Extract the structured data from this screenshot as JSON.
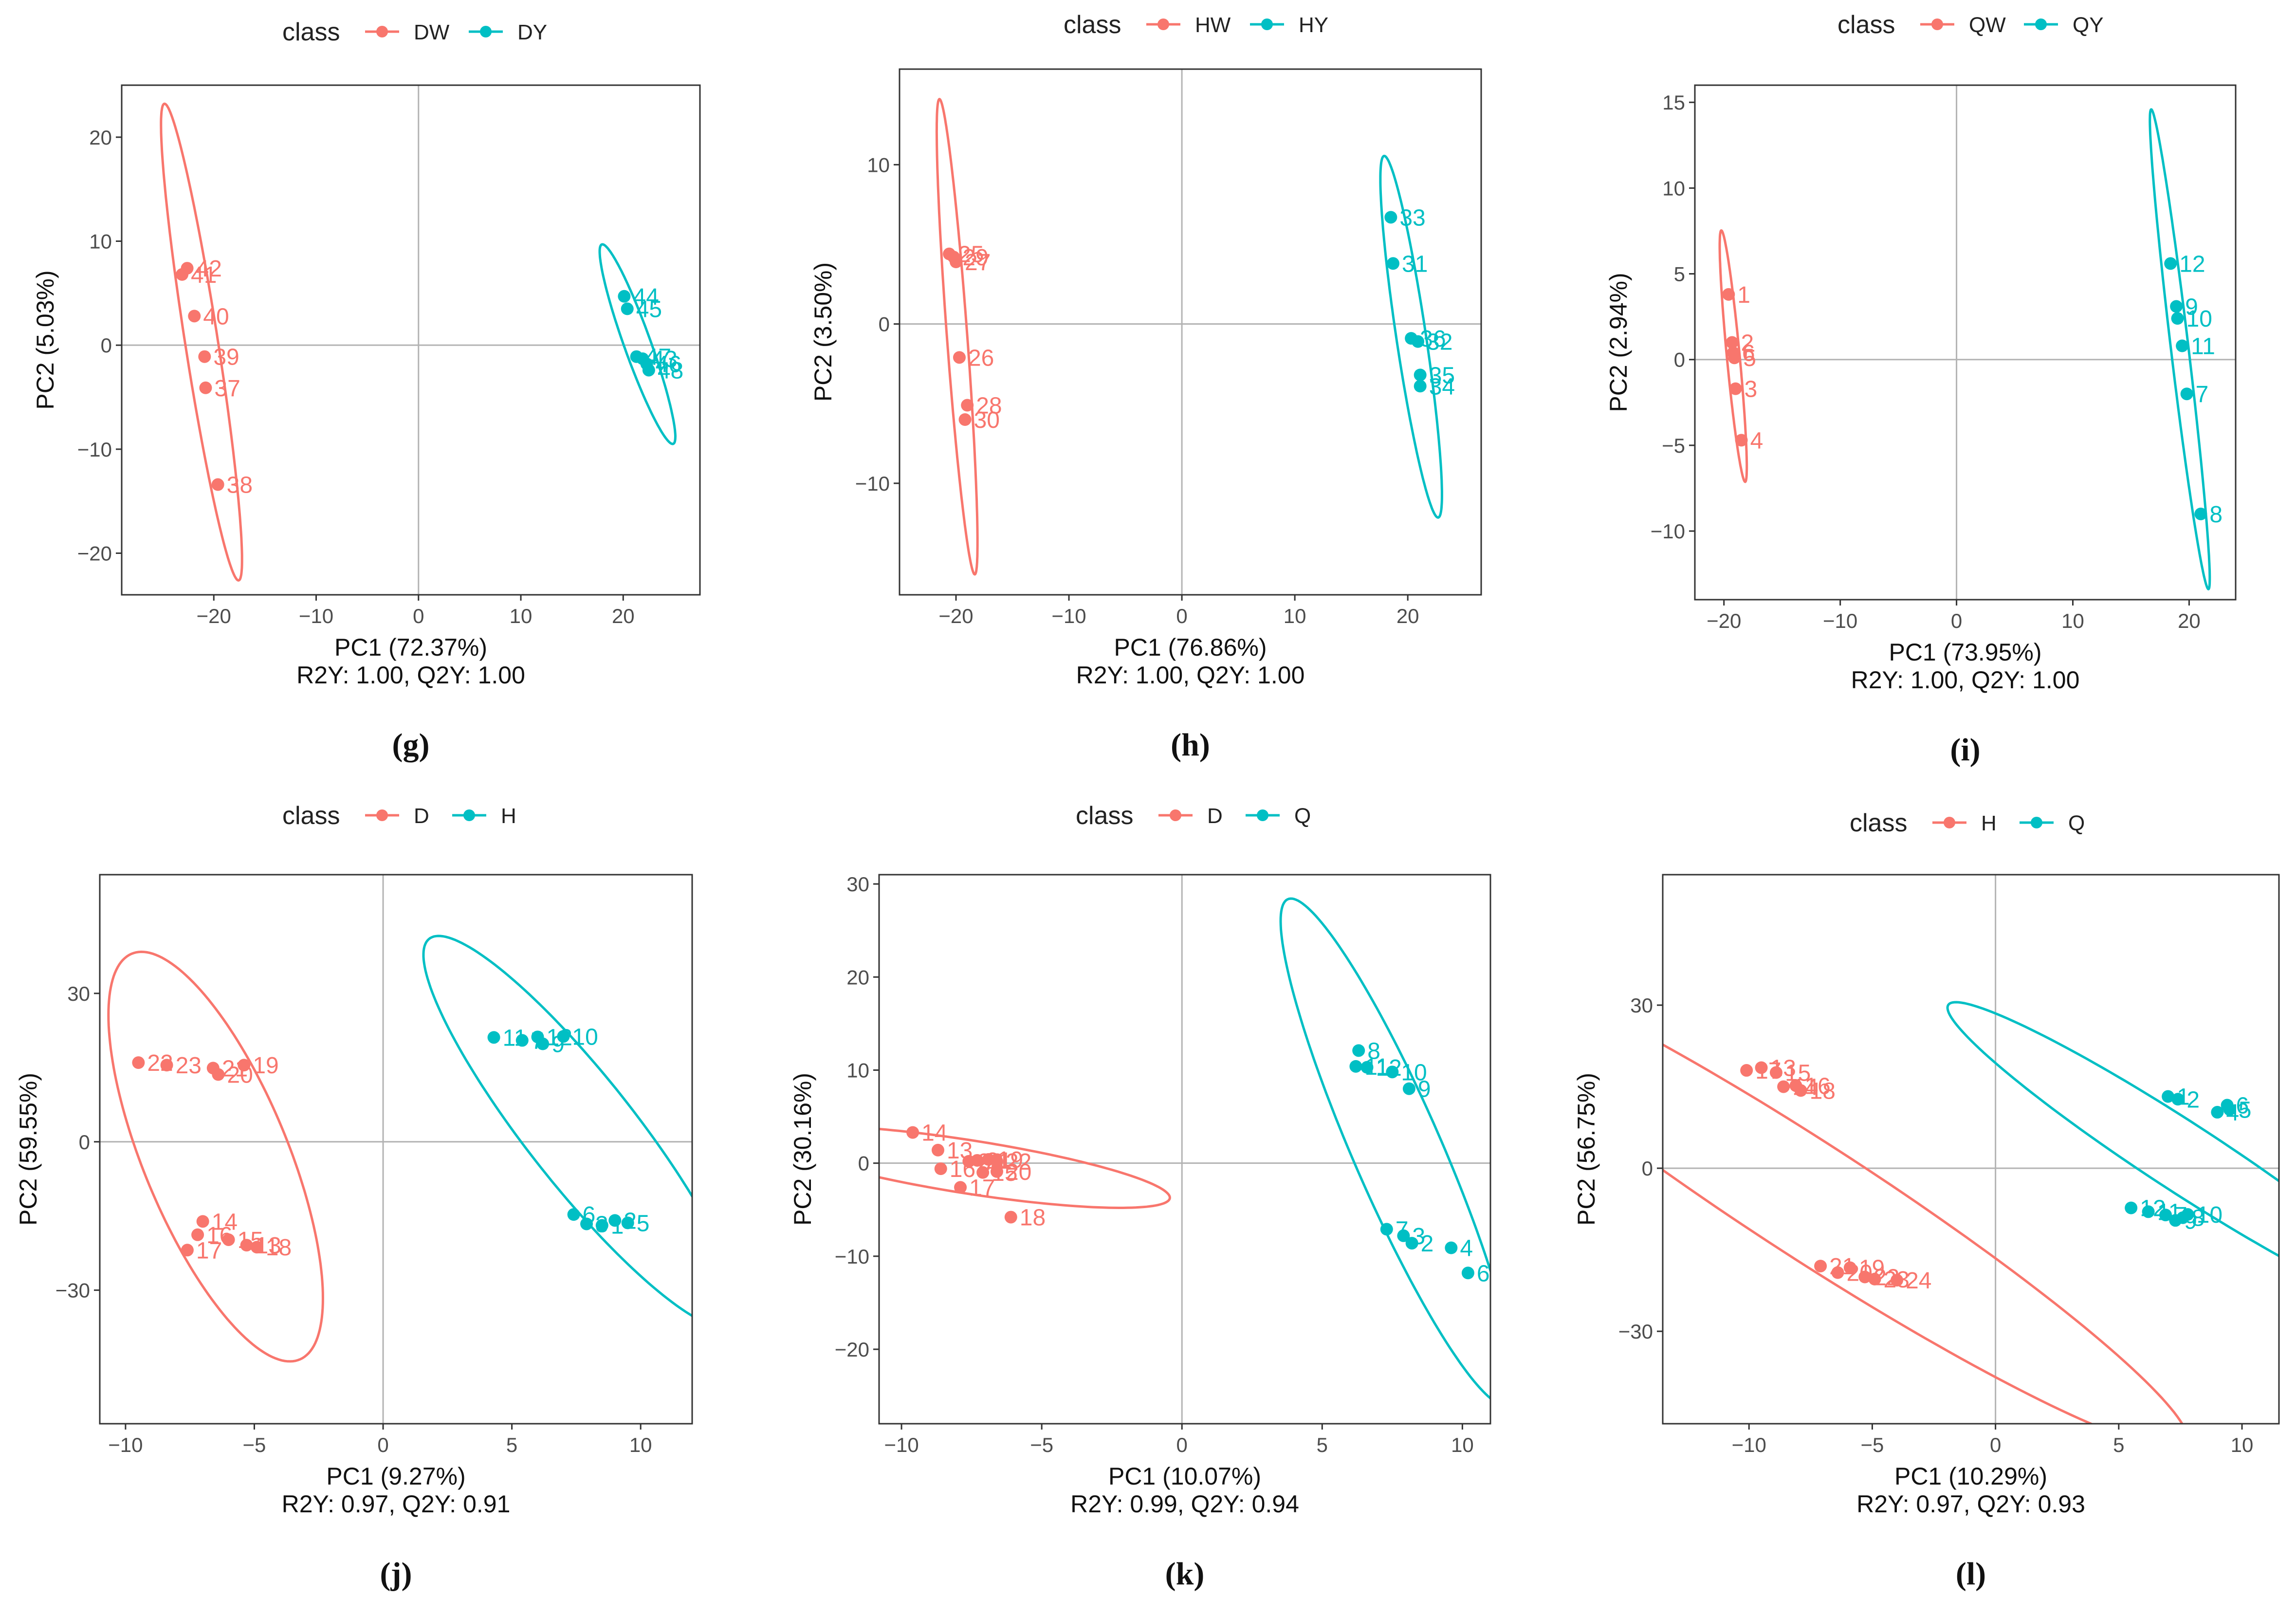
{
  "colors": {
    "group_a": "#F8766D",
    "group_b": "#00BFC4"
  },
  "legend_title": "class",
  "chart_data": [
    {
      "type": "scatter",
      "panel_label": "g",
      "xlabel": "PC1 (72.37%)",
      "ylabel": "PC2 (5.03%)",
      "subtitle": "R2Y: 1.00, Q2Y: 1.00",
      "xlim": [
        -29,
        27.5
      ],
      "ylim": [
        -24,
        25
      ],
      "xticks": [
        -20,
        -10,
        0,
        10,
        20
      ],
      "yticks": [
        -20,
        -10,
        0,
        10,
        20
      ],
      "legend": [
        "DW",
        "DY"
      ],
      "series": [
        {
          "name": "DW",
          "points": [
            {
              "x": -22.6,
              "y": 7.4,
              "label": "42"
            },
            {
              "x": -23.1,
              "y": 6.8,
              "label": "41"
            },
            {
              "x": -21.9,
              "y": 2.8,
              "label": "40"
            },
            {
              "x": -20.9,
              "y": -1.1,
              "label": "39"
            },
            {
              "x": -20.8,
              "y": -4.1,
              "label": "37"
            },
            {
              "x": -19.6,
              "y": -13.4,
              "label": "38"
            }
          ],
          "ellipse": {
            "cx": -21.2,
            "cy": 0.3,
            "rx": 23.2,
            "ry": 1.6,
            "angle": -81
          }
        },
        {
          "name": "DY",
          "points": [
            {
              "x": 20.1,
              "y": 4.7,
              "label": "44"
            },
            {
              "x": 20.4,
              "y": 3.5,
              "label": "45"
            },
            {
              "x": 21.3,
              "y": -1.1,
              "label": "47"
            },
            {
              "x": 21.9,
              "y": -1.3,
              "label": "43"
            },
            {
              "x": 22.3,
              "y": -1.8,
              "label": "46"
            },
            {
              "x": 22.5,
              "y": -2.4,
              "label": "48"
            }
          ],
          "ellipse": {
            "cx": 21.4,
            "cy": 0.1,
            "rx": 10.2,
            "ry": 1.3,
            "angle": -70
          }
        }
      ]
    },
    {
      "type": "scatter",
      "panel_label": "h",
      "xlabel": "PC1 (76.86%)",
      "ylabel": "PC2 (3.50%)",
      "subtitle": "R2Y: 1.00, Q2Y: 1.00",
      "xlim": [
        -25,
        26.5
      ],
      "ylim": [
        -17,
        16
      ],
      "xticks": [
        -20,
        -10,
        0,
        10,
        20
      ],
      "yticks": [
        -10,
        0,
        10
      ],
      "legend": [
        "HW",
        "HY"
      ],
      "series": [
        {
          "name": "HW",
          "points": [
            {
              "x": -20.6,
              "y": 4.4,
              "label": "25"
            },
            {
              "x": -20.2,
              "y": 4.2,
              "label": "29"
            },
            {
              "x": -20.0,
              "y": 3.9,
              "label": "27"
            },
            {
              "x": -19.7,
              "y": -2.1,
              "label": "26"
            },
            {
              "x": -19.0,
              "y": -5.1,
              "label": "28"
            },
            {
              "x": -19.2,
              "y": -6.0,
              "label": "30"
            }
          ],
          "ellipse": {
            "cx": -19.9,
            "cy": -0.8,
            "rx": 15.0,
            "ry": 0.9,
            "angle": -84
          }
        },
        {
          "name": "HY",
          "points": [
            {
              "x": 18.5,
              "y": 6.7,
              "label": "33"
            },
            {
              "x": 18.7,
              "y": 3.8,
              "label": "31"
            },
            {
              "x": 20.3,
              "y": -0.9,
              "label": "36"
            },
            {
              "x": 20.9,
              "y": -1.1,
              "label": "32"
            },
            {
              "x": 21.1,
              "y": -3.2,
              "label": "35"
            },
            {
              "x": 21.1,
              "y": -3.9,
              "label": "34"
            }
          ],
          "ellipse": {
            "cx": 20.3,
            "cy": -0.8,
            "rx": 11.6,
            "ry": 1.3,
            "angle": -78
          }
        }
      ]
    },
    {
      "type": "scatter",
      "panel_label": "i",
      "xlabel": "PC1 (73.95%)",
      "ylabel": "PC2 (2.94%)",
      "subtitle": "R2Y: 1.00, Q2Y: 1.00",
      "xlim": [
        -22.5,
        24
      ],
      "ylim": [
        -14,
        16
      ],
      "xticks": [
        -20,
        -10,
        0,
        10,
        20
      ],
      "yticks": [
        -10,
        -5,
        0,
        5,
        10,
        15
      ],
      "legend": [
        "QW",
        "QY"
      ],
      "series": [
        {
          "name": "QW",
          "points": [
            {
              "x": -19.6,
              "y": 3.8,
              "label": "1"
            },
            {
              "x": -19.3,
              "y": 1.0,
              "label": "2"
            },
            {
              "x": -19.2,
              "y": 0.4,
              "label": "6"
            },
            {
              "x": -19.1,
              "y": 0.1,
              "label": "5"
            },
            {
              "x": -19.0,
              "y": -1.7,
              "label": "3"
            },
            {
              "x": -18.5,
              "y": -4.7,
              "label": "4"
            }
          ],
          "ellipse": {
            "cx": -19.2,
            "cy": 0.2,
            "rx": 7.4,
            "ry": 0.55,
            "angle": -82
          }
        },
        {
          "name": "QY",
          "points": [
            {
              "x": 18.4,
              "y": 5.6,
              "label": "12"
            },
            {
              "x": 18.9,
              "y": 3.1,
              "label": "9"
            },
            {
              "x": 19.0,
              "y": 2.4,
              "label": "10"
            },
            {
              "x": 19.4,
              "y": 0.8,
              "label": "11"
            },
            {
              "x": 19.8,
              "y": -2.0,
              "label": "7"
            },
            {
              "x": 21.0,
              "y": -9.0,
              "label": "8"
            }
          ],
          "ellipse": {
            "cx": 19.2,
            "cy": 0.6,
            "rx": 14.2,
            "ry": 0.75,
            "angle": -80
          }
        }
      ]
    },
    {
      "type": "scatter",
      "panel_label": "j",
      "xlabel": "PC1 (9.27%)",
      "ylabel": "PC2 (59.55%)",
      "subtitle": "R2Y: 0.97, Q2Y: 0.91",
      "xlim": [
        -11,
        12
      ],
      "ylim": [
        -57,
        54
      ],
      "xticks": [
        -10,
        -5,
        0,
        5,
        10
      ],
      "yticks": [
        -30,
        0,
        30
      ],
      "legend": [
        "D",
        "H"
      ],
      "series": [
        {
          "name": "D",
          "points": [
            {
              "x": -9.5,
              "y": 16.0,
              "label": "22"
            },
            {
              "x": -8.4,
              "y": 15.5,
              "label": "23"
            },
            {
              "x": -6.6,
              "y": 14.9,
              "label": "21"
            },
            {
              "x": -6.4,
              "y": 13.6,
              "label": "20"
            },
            {
              "x": -5.4,
              "y": 15.5,
              "label": "19"
            },
            {
              "x": -7.0,
              "y": -16.1,
              "label": "14"
            },
            {
              "x": -7.2,
              "y": -18.8,
              "label": "16"
            },
            {
              "x": -6.0,
              "y": -19.8,
              "label": "15"
            },
            {
              "x": -7.6,
              "y": -21.9,
              "label": "17"
            },
            {
              "x": -5.3,
              "y": -20.9,
              "label": "13"
            },
            {
              "x": -4.9,
              "y": -21.3,
              "label": "18"
            }
          ],
          "ellipse": {
            "cx": -6.5,
            "cy": -3.0,
            "rx": 41.5,
            "ry": 3.0,
            "angle": -86
          }
        },
        {
          "name": "H",
          "points": [
            {
              "x": 4.3,
              "y": 21.1,
              "label": "11"
            },
            {
              "x": 5.4,
              "y": 20.5,
              "label": "7"
            },
            {
              "x": 6.0,
              "y": 21.2,
              "label": "12"
            },
            {
              "x": 6.2,
              "y": 19.8,
              "label": "9"
            },
            {
              "x": 7.0,
              "y": 21.3,
              "label": "10"
            },
            {
              "x": 7.4,
              "y": -14.7,
              "label": "6"
            },
            {
              "x": 7.9,
              "y": -16.6,
              "label": "3"
            },
            {
              "x": 8.5,
              "y": -16.9,
              "label": "1"
            },
            {
              "x": 9.0,
              "y": -15.9,
              "label": "2"
            },
            {
              "x": 9.5,
              "y": -16.4,
              "label": "5"
            }
          ],
          "ellipse": {
            "cx": 7.7,
            "cy": 2.0,
            "rx": 40.0,
            "ry": 2.6,
            "angle": -82
          }
        }
      ]
    },
    {
      "type": "scatter",
      "panel_label": "k",
      "xlabel": "PC1 (10.07%)",
      "ylabel": "PC2 (30.16%)",
      "subtitle": "R2Y: 0.99, Q2Y: 0.94",
      "xlim": [
        -10.8,
        11
      ],
      "ylim": [
        -28,
        31
      ],
      "xticks": [
        -10,
        -5,
        0,
        5,
        10
      ],
      "yticks": [
        -20,
        -10,
        0,
        10,
        20,
        30
      ],
      "legend": [
        "D",
        "Q"
      ],
      "series": [
        {
          "name": "D",
          "points": [
            {
              "x": -9.6,
              "y": 3.3,
              "label": "14"
            },
            {
              "x": -8.7,
              "y": 1.4,
              "label": "13"
            },
            {
              "x": -7.6,
              "y": 0.2,
              "label": "23"
            },
            {
              "x": -7.3,
              "y": 0.3,
              "label": "21"
            },
            {
              "x": -6.9,
              "y": 0.4,
              "label": "19"
            },
            {
              "x": -6.6,
              "y": 0.2,
              "label": "22"
            },
            {
              "x": -8.6,
              "y": -0.6,
              "label": "16"
            },
            {
              "x": -7.1,
              "y": -1.0,
              "label": "15"
            },
            {
              "x": -6.6,
              "y": -0.9,
              "label": "20"
            },
            {
              "x": -7.9,
              "y": -2.6,
              "label": "17"
            },
            {
              "x": -6.1,
              "y": -5.8,
              "label": "18"
            }
          ],
          "ellipse": {
            "cx": -7.6,
            "cy": -0.4,
            "rx": 8.0,
            "ry": 2.6,
            "angle": -28
          }
        },
        {
          "name": "Q",
          "points": [
            {
              "x": 6.3,
              "y": 12.1,
              "label": "8"
            },
            {
              "x": 6.2,
              "y": 10.4,
              "label": "11"
            },
            {
              "x": 6.6,
              "y": 10.3,
              "label": "12"
            },
            {
              "x": 7.5,
              "y": 9.8,
              "label": "10"
            },
            {
              "x": 8.1,
              "y": 8.0,
              "label": "9"
            },
            {
              "x": 7.3,
              "y": -7.1,
              "label": "7"
            },
            {
              "x": 7.9,
              "y": -7.8,
              "label": "3"
            },
            {
              "x": 8.2,
              "y": -8.6,
              "label": "2"
            },
            {
              "x": 9.6,
              "y": -9.1,
              "label": "4"
            },
            {
              "x": 10.2,
              "y": -11.8,
              "label": "6"
            }
          ],
          "ellipse": {
            "cx": 7.7,
            "cy": 1.2,
            "rx": 27.5,
            "ry": 1.7,
            "angle": -82
          }
        }
      ]
    },
    {
      "type": "scatter",
      "panel_label": "l",
      "xlabel": "PC1 (10.29%)",
      "ylabel": "PC2 (56.75%)",
      "subtitle": "R2Y: 0.97, Q2Y: 0.93",
      "xlim": [
        -13.5,
        11.5
      ],
      "ylim": [
        -47,
        54
      ],
      "xticks": [
        -10,
        -5,
        0,
        5,
        10
      ],
      "yticks": [
        -30,
        0,
        30
      ],
      "legend": [
        "H",
        "Q"
      ],
      "series": [
        {
          "name": "H",
          "points": [
            {
              "x": -10.1,
              "y": 18.0,
              "label": "17"
            },
            {
              "x": -9.5,
              "y": 18.5,
              "label": "13"
            },
            {
              "x": -8.9,
              "y": 17.6,
              "label": "15"
            },
            {
              "x": -8.6,
              "y": 15.0,
              "label": "14"
            },
            {
              "x": -8.1,
              "y": 15.2,
              "label": "16"
            },
            {
              "x": -7.9,
              "y": 14.3,
              "label": "18"
            },
            {
              "x": -7.1,
              "y": -18.0,
              "label": "21"
            },
            {
              "x": -6.4,
              "y": -19.2,
              "label": "20"
            },
            {
              "x": -5.9,
              "y": -18.3,
              "label": "19"
            },
            {
              "x": -5.3,
              "y": -20.0,
              "label": "22"
            },
            {
              "x": -4.9,
              "y": -20.4,
              "label": "23"
            },
            {
              "x": -4.0,
              "y": -20.6,
              "label": "24"
            }
          ],
          "ellipse": {
            "cx": -7.5,
            "cy": -6.0,
            "rx": 48.0,
            "ry": 4.0,
            "angle": -72
          }
        },
        {
          "name": "Q",
          "points": [
            {
              "x": 7.0,
              "y": 13.2,
              "label": "1"
            },
            {
              "x": 7.4,
              "y": 12.7,
              "label": "2"
            },
            {
              "x": 9.0,
              "y": 10.3,
              "label": "4"
            },
            {
              "x": 9.4,
              "y": 11.6,
              "label": "6"
            },
            {
              "x": 9.5,
              "y": 10.8,
              "label": "5"
            },
            {
              "x": 5.5,
              "y": -7.3,
              "label": "12"
            },
            {
              "x": 6.2,
              "y": -8.0,
              "label": "11"
            },
            {
              "x": 6.9,
              "y": -8.6,
              "label": "7"
            },
            {
              "x": 7.6,
              "y": -9.1,
              "label": "8"
            },
            {
              "x": 7.8,
              "y": -8.5,
              "label": "10"
            },
            {
              "x": 7.3,
              "y": -9.6,
              "label": "9"
            }
          ],
          "ellipse": {
            "cx": 7.6,
            "cy": 2.0,
            "rx": 30.0,
            "ry": 2.4,
            "angle": -72
          }
        }
      ]
    }
  ]
}
